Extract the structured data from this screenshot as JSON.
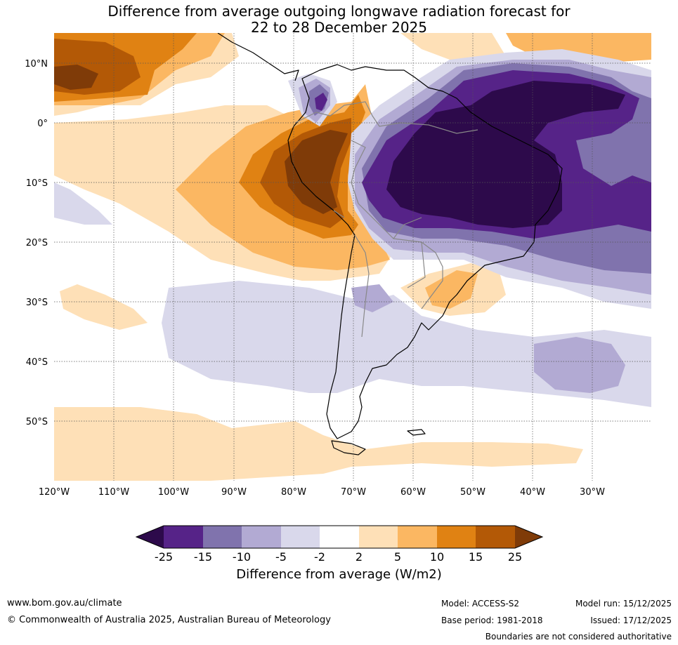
{
  "title_line1": "Difference from average outgoing longwave radiation forecast for",
  "title_line2": "22 to 28 December 2025",
  "lat_labels": [
    "10°N",
    "0°",
    "10°S",
    "20°S",
    "30°S",
    "40°S",
    "50°S"
  ],
  "lon_labels": [
    "120°W",
    "110°W",
    "100°W",
    "90°W",
    "80°W",
    "70°W",
    "60°W",
    "50°W",
    "40°W",
    "30°W"
  ],
  "colorbar": {
    "ticks": [
      "-25",
      "-15",
      "-10",
      "-5",
      "-2",
      "2",
      "5",
      "10",
      "15",
      "25"
    ],
    "colors": [
      "#2d0a4b",
      "#562388",
      "#8073ad",
      "#b2aad3",
      "#d9d8eb",
      "#ffffff",
      "#fee0b7",
      "#fbb762",
      "#e08213",
      "#b35906",
      "#7f3b08"
    ],
    "label": "Difference from average (W/m2)"
  },
  "footer": {
    "website": "www.bom.gov.au/climate",
    "copyright": "© Commonwealth of Australia 2025, Australian Bureau of Meteorology",
    "model": "Model: ACCESS-S2",
    "base_period": "Base period: 1981-2018",
    "model_run": "Model run: 15/12/2025",
    "issued": "Issued: 17/12/2025",
    "disclaimer": "Boundaries are not considered authoritative"
  }
}
